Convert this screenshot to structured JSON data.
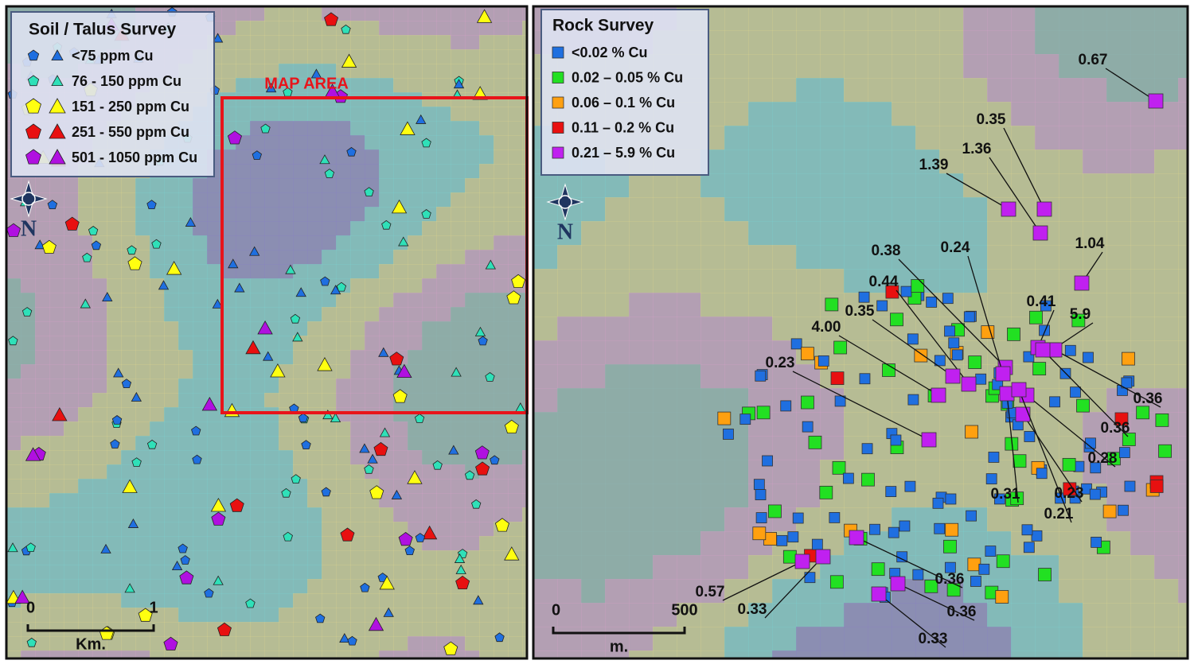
{
  "left_panel": {
    "legend": {
      "title": "Soil / Talus Survey",
      "items": [
        "<75 ppm Cu",
        "76 - 150 ppm Cu",
        "151 - 250 ppm Cu",
        "251 - 550 ppm Cu",
        "501 - 1050 ppm Cu"
      ]
    },
    "map_area_label": "MAP AREA",
    "north_label": "N",
    "scale": {
      "start": "0",
      "end": "1",
      "unit": "Km."
    }
  },
  "right_panel": {
    "legend": {
      "title": "Rock Survey",
      "items": [
        "<0.02 % Cu",
        "0.02 – 0.05 % Cu",
        "0.06 – 0.1 % Cu",
        "0.11 – 0.2 % Cu",
        "0.21 – 5.9 % Cu"
      ]
    },
    "north_label": "N",
    "scale": {
      "start": "0",
      "end": "500",
      "unit": "m."
    },
    "sample_labels": [
      "0.67",
      "0.35",
      "1.36",
      "1.39",
      "0.38",
      "0.24",
      "1.04",
      "0.44",
      "0.41",
      "0.35",
      "5.9",
      "4.00",
      "0.23",
      "0.36",
      "0.36",
      "0.28",
      "0.31",
      "0.23",
      "0.21",
      "0.57",
      "0.36",
      "0.33",
      "0.36",
      "0.33"
    ]
  }
}
